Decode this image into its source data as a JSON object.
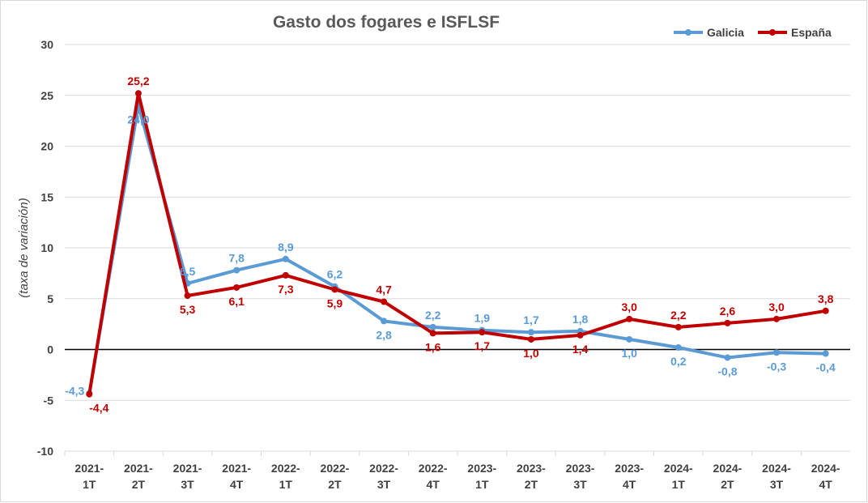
{
  "chart_data": {
    "type": "line",
    "title": "Gasto dos fogares e ISFLSF",
    "ylabel": "(taxa de variación)",
    "xlabel": "",
    "ylim": [
      -10,
      30
    ],
    "yticks": [
      "-10",
      "-5",
      "0",
      "5",
      "10",
      "15",
      "20",
      "25",
      "30"
    ],
    "grid": true,
    "legend_position": "top-right",
    "categories": [
      "2021-1T",
      "2021-2T",
      "2021-3T",
      "2021-4T",
      "2022-1T",
      "2022-2T",
      "2022-3T",
      "2022-4T",
      "2023-1T",
      "2023-2T",
      "2023-3T",
      "2023-4T",
      "2024-1T",
      "2024-2T",
      "2024-3T",
      "2024-4T"
    ],
    "category_lines": [
      [
        "2021-",
        "1T"
      ],
      [
        "2021-",
        "2T"
      ],
      [
        "2021-",
        "3T"
      ],
      [
        "2021-",
        "4T"
      ],
      [
        "2022-",
        "1T"
      ],
      [
        "2022-",
        "2T"
      ],
      [
        "2022-",
        "3T"
      ],
      [
        "2022-",
        "4T"
      ],
      [
        "2023-",
        "1T"
      ],
      [
        "2023-",
        "2T"
      ],
      [
        "2023-",
        "3T"
      ],
      [
        "2023-",
        "4T"
      ],
      [
        "2024-",
        "1T"
      ],
      [
        "2024-",
        "2T"
      ],
      [
        "2024-",
        "3T"
      ],
      [
        "2024-",
        "4T"
      ]
    ],
    "series": [
      {
        "name": "Galicia",
        "color": "#5b9bd5",
        "values": [
          -4.3,
          24.0,
          6.5,
          7.8,
          8.9,
          6.2,
          2.8,
          2.2,
          1.9,
          1.7,
          1.8,
          1.0,
          0.2,
          -0.8,
          -0.3,
          -0.4
        ],
        "labels": [
          "-4,3",
          "24,0",
          "6,5",
          "7,8",
          "8,9",
          "6,2",
          "2,8",
          "2,2",
          "1,9",
          "1,7",
          "1,8",
          "1,0",
          "0,2",
          "-0,8",
          "-0,3",
          "-0,4"
        ]
      },
      {
        "name": "España",
        "color": "#c00000",
        "values": [
          -4.4,
          25.2,
          5.3,
          6.1,
          7.3,
          5.9,
          4.7,
          1.6,
          1.7,
          1.0,
          1.4,
          3.0,
          2.2,
          2.6,
          3.0,
          3.8
        ],
        "labels": [
          "-4,4",
          "25,2",
          "5,3",
          "6,1",
          "7,3",
          "5,9",
          "4,7",
          "1,6",
          "1,7",
          "1,0",
          "1,4",
          "3,0",
          "2,2",
          "2,6",
          "3,0",
          "3,8"
        ]
      }
    ]
  }
}
